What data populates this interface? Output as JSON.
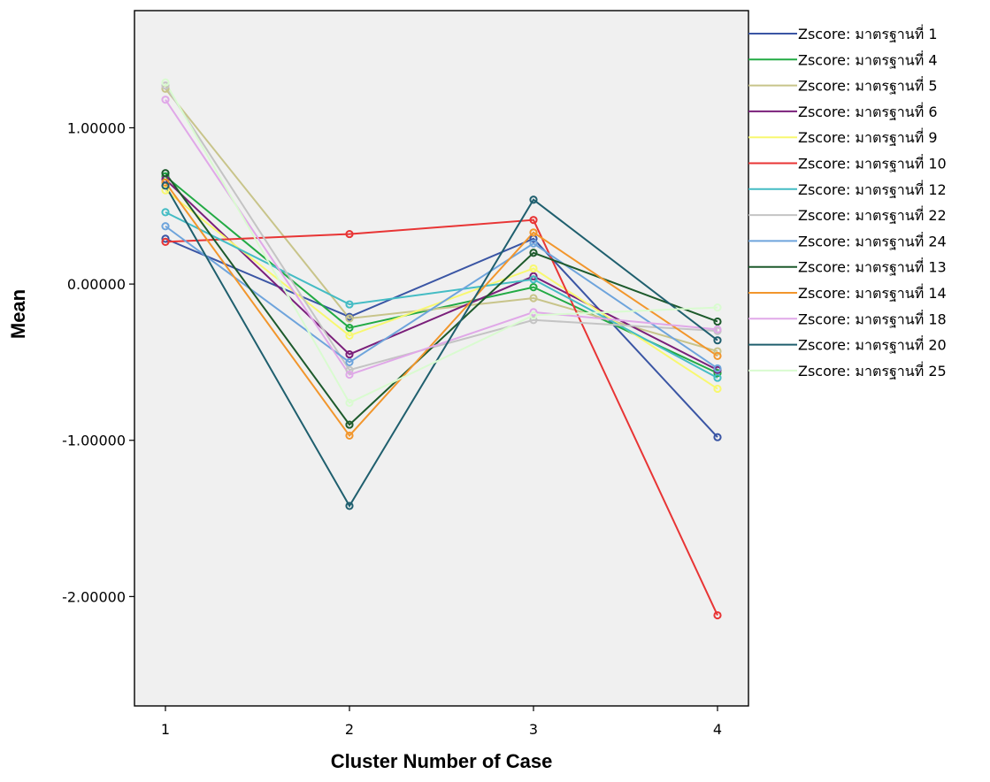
{
  "chart_data": {
    "type": "line",
    "title": "",
    "xlabel": "Cluster Number of Case",
    "ylabel": "Mean",
    "categories": [
      "1",
      "2",
      "3",
      "4"
    ],
    "ylim": [
      -2.7,
      1.75
    ],
    "yticks": [
      1.0,
      0.0,
      -1.0,
      -2.0
    ],
    "ytick_labels": [
      "1.00000",
      "0.00000",
      "-1.00000",
      "-2.00000"
    ],
    "grid": false,
    "legend_position": "right",
    "series": [
      {
        "name": "Zscore: มาตรฐานที่  1",
        "color": "#3a55a4",
        "values": [
          0.29,
          -0.21,
          0.29,
          -0.98
        ]
      },
      {
        "name": "Zscore: มาตรฐานที่  4",
        "color": "#22aa44",
        "values": [
          0.69,
          -0.28,
          -0.02,
          -0.57
        ]
      },
      {
        "name": "Zscore: มาตรฐานที่  5",
        "color": "#c8c48a",
        "values": [
          1.25,
          -0.22,
          -0.09,
          -0.43
        ]
      },
      {
        "name": "Zscore: มาตรฐานที่  6",
        "color": "#7a1f7a",
        "values": [
          0.67,
          -0.45,
          0.05,
          -0.55
        ]
      },
      {
        "name": "Zscore: มาตรฐานที่  9",
        "color": "#f8f870",
        "values": [
          0.6,
          -0.33,
          0.1,
          -0.67
        ]
      },
      {
        "name": "Zscore: มาตรฐานที่  10",
        "color": "#e83535",
        "values": [
          0.27,
          0.32,
          0.41,
          -2.12
        ]
      },
      {
        "name": "Zscore: มาตรฐานที่  12",
        "color": "#44bcc4",
        "values": [
          0.46,
          -0.13,
          0.03,
          -0.6
        ]
      },
      {
        "name": "Zscore: มาตรฐานที่  22",
        "color": "#c4c4c4",
        "values": [
          1.27,
          -0.55,
          -0.23,
          -0.3
        ]
      },
      {
        "name": "Zscore: มาตรฐานที่  24",
        "color": "#6ea4dc",
        "values": [
          0.37,
          -0.5,
          0.26,
          -0.54
        ]
      },
      {
        "name": "Zscore: มาตรฐานที่  13",
        "color": "#1d5a2c",
        "values": [
          0.71,
          -0.9,
          0.2,
          -0.24
        ]
      },
      {
        "name": "Zscore: มาตรฐานที่  14",
        "color": "#f2962c",
        "values": [
          0.65,
          -0.97,
          0.33,
          -0.46
        ]
      },
      {
        "name": "Zscore: มาตรฐานที่  18",
        "color": "#e0a8e8",
        "values": [
          1.18,
          -0.58,
          -0.18,
          -0.29
        ]
      },
      {
        "name": "Zscore: มาตรฐานที่  20",
        "color": "#1f5f6e",
        "values": [
          0.63,
          -1.42,
          0.54,
          -0.36
        ]
      },
      {
        "name": "Zscore: มาตรฐานที่  25",
        "color": "#d9fbd0",
        "values": [
          1.29,
          -0.76,
          -0.2,
          -0.15
        ]
      }
    ]
  }
}
